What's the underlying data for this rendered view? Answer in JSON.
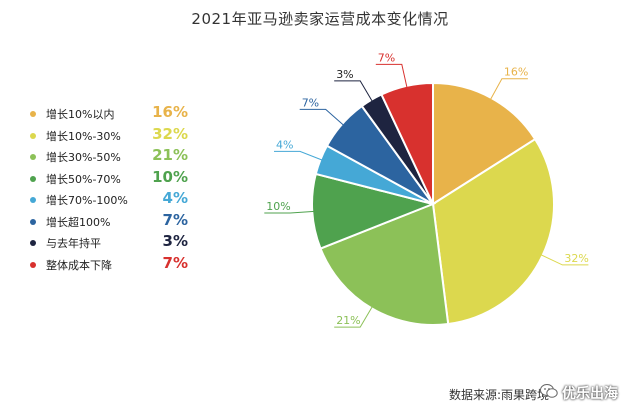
{
  "chart_data": {
    "type": "pie",
    "title": "2021年亚马逊卖家运营成本变化情况",
    "legend": "left",
    "slices": [
      {
        "name": "增长10%以内",
        "value": 16,
        "label": "16%",
        "color": "#E8B34A"
      },
      {
        "name": "增长10%-30%",
        "value": 32,
        "label": "32%",
        "color": "#DCD84E"
      },
      {
        "name": "增长30%-50%",
        "value": 21,
        "label": "21%",
        "color": "#8CC158"
      },
      {
        "name": "增长50%-70%",
        "value": 10,
        "label": "10%",
        "color": "#4FA24E"
      },
      {
        "name": "增长70%-100%",
        "value": 4,
        "label": "4%",
        "color": "#45A8D6"
      },
      {
        "name": "增长超100%",
        "value": 7,
        "label": "7%",
        "color": "#2C64A0"
      },
      {
        "name": "与去年持平",
        "value": 3,
        "label": "3%",
        "color": "#1E2440"
      },
      {
        "name": "整体成本下降",
        "value": 7,
        "label": "7%",
        "color": "#D8312E"
      }
    ]
  },
  "footer": {
    "source": "数据来源:雨果跨境",
    "brand": "优乐出海",
    "brand_icon": "wechat-icon"
  }
}
